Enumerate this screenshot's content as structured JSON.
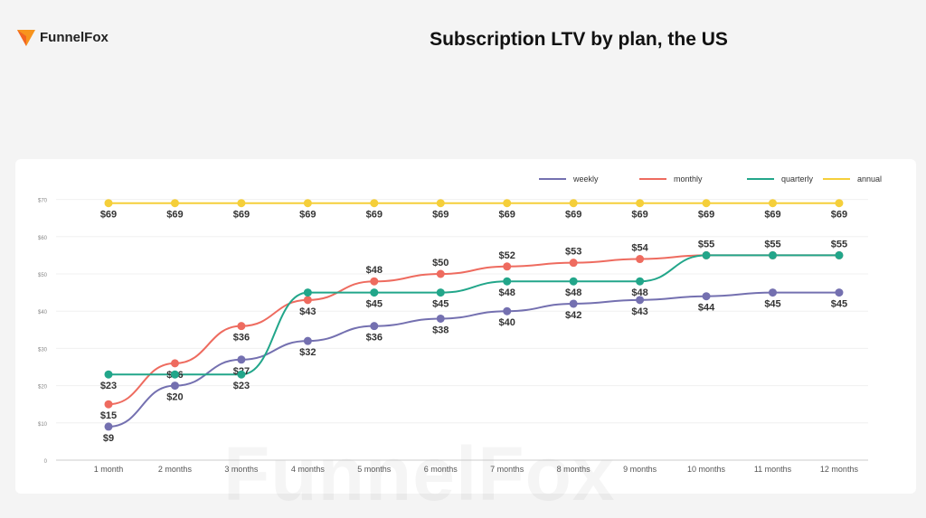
{
  "header": {
    "brand": "FunnelFox",
    "title": "Subscription LTV by plan, the US"
  },
  "chart_data": {
    "type": "line",
    "title": "Subscription LTV by plan, the US",
    "xlabel": "",
    "ylabel": "",
    "ylim": [
      0,
      70
    ],
    "yticks": [
      "0",
      "$10",
      "$20",
      "$30",
      "$40",
      "$50",
      "$60",
      "$70"
    ],
    "categories": [
      "1 month",
      "2 months",
      "3 months",
      "4 months",
      "5 months",
      "6 months",
      "7 months",
      "8 months",
      "9 months",
      "10 months",
      "11 months",
      "12 months"
    ],
    "legend_position": "top-right",
    "series": [
      {
        "name": "weekly",
        "color": "#7470b0",
        "values": [
          9,
          20,
          27,
          32,
          36,
          38,
          40,
          42,
          43,
          44,
          45,
          45
        ],
        "labels": [
          "$9",
          "$20",
          "$27",
          "$32",
          "$36",
          "$38",
          "$40",
          "$42",
          "$43",
          "$44",
          "$45",
          "$45"
        ]
      },
      {
        "name": "monthly",
        "color": "#ee6b5f",
        "values": [
          15,
          26,
          36,
          43,
          48,
          50,
          52,
          53,
          54,
          55,
          55,
          55
        ],
        "labels": [
          "$15",
          "$26",
          "$36",
          "$43",
          "$48",
          "$50",
          "$52",
          "$53",
          "$54",
          "$55",
          "$55",
          "$55"
        ]
      },
      {
        "name": "quarterly",
        "color": "#22a68a",
        "values": [
          23,
          23,
          23,
          45,
          45,
          45,
          48,
          48,
          48,
          55,
          55,
          55
        ],
        "labels": [
          "$23",
          "",
          "$23",
          "",
          "$45",
          "$45",
          "$48",
          "$48",
          "$48",
          "",
          "",
          ""
        ]
      },
      {
        "name": "annual",
        "color": "#f5cf3a",
        "values": [
          69,
          69,
          69,
          69,
          69,
          69,
          69,
          69,
          69,
          69,
          69,
          69
        ],
        "labels": [
          "$69",
          "$69",
          "$69",
          "$69",
          "$69",
          "$69",
          "$69",
          "$69",
          "$69",
          "$69",
          "$69",
          "$69"
        ]
      }
    ]
  }
}
